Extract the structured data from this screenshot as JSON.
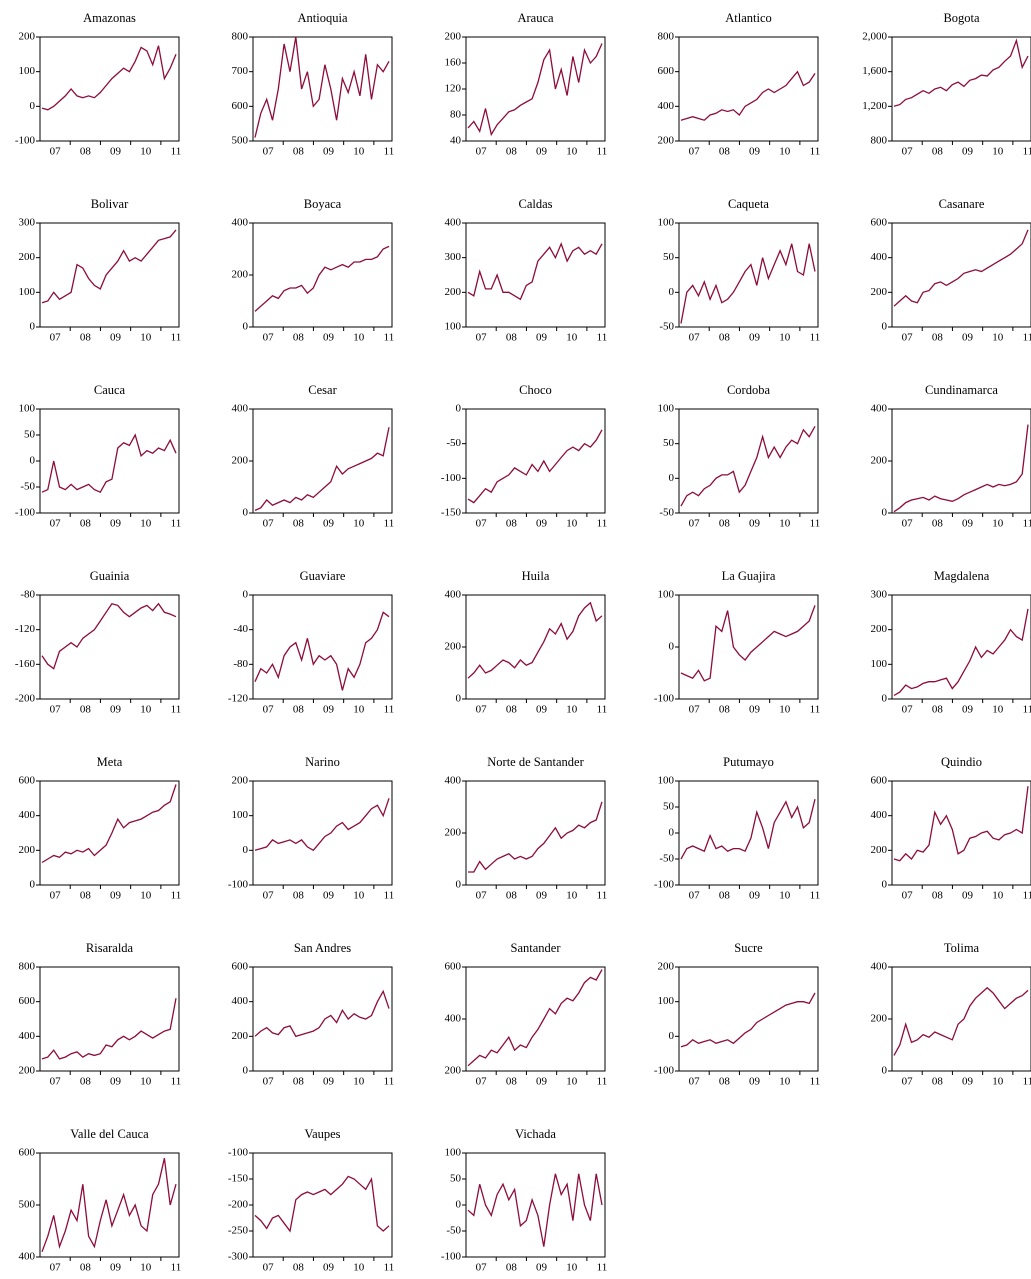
{
  "years": [
    "07",
    "08",
    "09",
    "10",
    "11"
  ],
  "chart_data": [
    {
      "type": "line",
      "title": "Amazonas",
      "color": "#8e0c3a",
      "ylim": [
        -100,
        200
      ],
      "yticks": [
        -100,
        0,
        100,
        200
      ],
      "values": [
        -5,
        -10,
        0,
        15,
        30,
        50,
        30,
        25,
        30,
        25,
        40,
        60,
        80,
        95,
        110,
        100,
        130,
        170,
        160,
        120,
        175,
        80,
        110,
        150
      ]
    },
    {
      "type": "line",
      "title": "Antioquia",
      "color": "#8e0c3a",
      "ylim": [
        500,
        800
      ],
      "yticks": [
        500,
        600,
        700,
        800
      ],
      "values": [
        510,
        580,
        620,
        560,
        650,
        780,
        700,
        800,
        650,
        700,
        600,
        620,
        720,
        650,
        560,
        680,
        640,
        700,
        630,
        750,
        620,
        720,
        700,
        730
      ]
    },
    {
      "type": "line",
      "title": "Arauca",
      "color": "#8e0c3a",
      "ylim": [
        40,
        200
      ],
      "yticks": [
        40,
        80,
        120,
        160,
        200
      ],
      "values": [
        60,
        70,
        55,
        90,
        50,
        65,
        75,
        85,
        88,
        95,
        100,
        105,
        130,
        165,
        180,
        120,
        150,
        110,
        170,
        130,
        180,
        160,
        170,
        190
      ]
    },
    {
      "type": "line",
      "title": "Atlantico",
      "color": "#8e0c3a",
      "ylim": [
        200,
        800
      ],
      "yticks": [
        200,
        400,
        600,
        800
      ],
      "values": [
        320,
        330,
        340,
        330,
        320,
        350,
        360,
        380,
        370,
        380,
        350,
        400,
        420,
        440,
        480,
        500,
        480,
        500,
        520,
        560,
        600,
        520,
        540,
        590
      ]
    },
    {
      "type": "line",
      "title": "Bogota",
      "color": "#8e0c3a",
      "ylim": [
        800,
        2000
      ],
      "yticks": [
        800,
        {
          "value": 1200,
          "label": "1,200"
        },
        {
          "value": 1600,
          "label": "1,600"
        },
        {
          "value": 2000,
          "label": "2,000"
        }
      ],
      "values": [
        1200,
        1220,
        1280,
        1300,
        1340,
        1380,
        1350,
        1400,
        1420,
        1380,
        1450,
        1480,
        1430,
        1500,
        1520,
        1560,
        1550,
        1620,
        1650,
        1720,
        1780,
        1960,
        1650,
        1780
      ]
    },
    {
      "type": "line",
      "title": "Bolivar",
      "color": "#8e0c3a",
      "ylim": [
        0,
        300
      ],
      "yticks": [
        0,
        100,
        200,
        300
      ],
      "values": [
        70,
        75,
        100,
        80,
        90,
        100,
        180,
        170,
        140,
        120,
        110,
        150,
        170,
        190,
        220,
        190,
        200,
        190,
        210,
        230,
        250,
        255,
        260,
        280
      ]
    },
    {
      "type": "line",
      "title": "Boyaca",
      "color": "#8e0c3a",
      "ylim": [
        0,
        400
      ],
      "yticks": [
        0,
        200,
        400
      ],
      "values": [
        60,
        80,
        100,
        120,
        110,
        140,
        150,
        150,
        160,
        130,
        150,
        200,
        230,
        220,
        230,
        240,
        230,
        250,
        250,
        260,
        260,
        270,
        300,
        310
      ]
    },
    {
      "type": "line",
      "title": "Caldas",
      "color": "#8e0c3a",
      "ylim": [
        100,
        400
      ],
      "yticks": [
        100,
        200,
        300,
        400
      ],
      "values": [
        200,
        190,
        260,
        210,
        210,
        250,
        200,
        200,
        190,
        180,
        220,
        230,
        290,
        310,
        330,
        300,
        340,
        290,
        320,
        330,
        310,
        320,
        310,
        340
      ]
    },
    {
      "type": "line",
      "title": "Caqueta",
      "color": "#8e0c3a",
      "ylim": [
        -50,
        100
      ],
      "yticks": [
        -50,
        0,
        50,
        100
      ],
      "values": [
        -45,
        0,
        10,
        -5,
        15,
        -10,
        10,
        -15,
        -10,
        0,
        15,
        30,
        40,
        10,
        50,
        20,
        40,
        60,
        40,
        70,
        30,
        25,
        70,
        30
      ]
    },
    {
      "type": "line",
      "title": "Casanare",
      "color": "#8e0c3a",
      "ylim": [
        0,
        600
      ],
      "yticks": [
        0,
        200,
        400,
        600
      ],
      "values": [
        120,
        150,
        180,
        150,
        140,
        200,
        210,
        250,
        260,
        240,
        260,
        280,
        310,
        320,
        330,
        320,
        340,
        360,
        380,
        400,
        420,
        450,
        480,
        560
      ]
    },
    {
      "type": "line",
      "title": "Cauca",
      "color": "#8e0c3a",
      "ylim": [
        -100,
        100
      ],
      "yticks": [
        -100,
        -50,
        0,
        50,
        100
      ],
      "values": [
        -60,
        -55,
        0,
        -50,
        -55,
        -45,
        -55,
        -50,
        -45,
        -55,
        -60,
        -40,
        -35,
        25,
        35,
        30,
        50,
        10,
        20,
        15,
        25,
        20,
        40,
        15
      ]
    },
    {
      "type": "line",
      "title": "Cesar",
      "color": "#8e0c3a",
      "ylim": [
        0,
        400
      ],
      "yticks": [
        0,
        200,
        400
      ],
      "values": [
        10,
        20,
        50,
        30,
        40,
        50,
        40,
        60,
        50,
        70,
        60,
        80,
        100,
        120,
        180,
        150,
        170,
        180,
        190,
        200,
        210,
        230,
        220,
        330
      ]
    },
    {
      "type": "line",
      "title": "Choco",
      "color": "#8e0c3a",
      "ylim": [
        -150,
        0
      ],
      "yticks": [
        -150,
        -100,
        -50,
        0
      ],
      "values": [
        -130,
        -135,
        -125,
        -115,
        -120,
        -105,
        -100,
        -95,
        -85,
        -90,
        -95,
        -80,
        -90,
        -75,
        -90,
        -80,
        -70,
        -60,
        -55,
        -60,
        -50,
        -55,
        -45,
        -30
      ]
    },
    {
      "type": "line",
      "title": "Cordoba",
      "color": "#8e0c3a",
      "ylim": [
        -50,
        100
      ],
      "yticks": [
        -50,
        0,
        50,
        100
      ],
      "values": [
        -40,
        -25,
        -20,
        -25,
        -15,
        -10,
        0,
        5,
        5,
        10,
        -20,
        -10,
        10,
        30,
        60,
        30,
        45,
        30,
        45,
        55,
        50,
        70,
        60,
        75
      ]
    },
    {
      "type": "line",
      "title": "Cundinamarca",
      "color": "#8e0c3a",
      "ylim": [
        0,
        400
      ],
      "yticks": [
        0,
        200,
        400
      ],
      "values": [
        5,
        20,
        40,
        50,
        55,
        60,
        50,
        65,
        55,
        50,
        45,
        55,
        70,
        80,
        90,
        100,
        110,
        100,
        110,
        105,
        110,
        120,
        150,
        340
      ]
    },
    {
      "type": "line",
      "title": "Guainia",
      "color": "#8e0c3a",
      "ylim": [
        -200,
        -80
      ],
      "yticks": [
        -200,
        -160,
        -120,
        -80
      ],
      "values": [
        -150,
        -160,
        -165,
        -145,
        -140,
        -135,
        -140,
        -130,
        -125,
        -120,
        -110,
        -100,
        -90,
        -92,
        -100,
        -105,
        -100,
        -95,
        -92,
        -98,
        -90,
        -100,
        -102,
        -105
      ]
    },
    {
      "type": "line",
      "title": "Guaviare",
      "color": "#8e0c3a",
      "ylim": [
        -120,
        0
      ],
      "yticks": [
        -120,
        -80,
        -40,
        0
      ],
      "values": [
        -100,
        -85,
        -90,
        -80,
        -95,
        -70,
        -60,
        -55,
        -75,
        -50,
        -80,
        -70,
        -75,
        -70,
        -80,
        -110,
        -85,
        -95,
        -80,
        -55,
        -50,
        -40,
        -20,
        -25
      ]
    },
    {
      "type": "line",
      "title": "Huila",
      "color": "#8e0c3a",
      "ylim": [
        0,
        400
      ],
      "yticks": [
        0,
        200,
        400
      ],
      "values": [
        80,
        100,
        130,
        100,
        110,
        130,
        150,
        140,
        120,
        150,
        130,
        140,
        180,
        220,
        270,
        250,
        290,
        230,
        260,
        320,
        350,
        370,
        300,
        320
      ]
    },
    {
      "type": "line",
      "title": "La Guajira",
      "color": "#8e0c3a",
      "ylim": [
        -100,
        100
      ],
      "yticks": [
        -100,
        0,
        100
      ],
      "values": [
        -50,
        -55,
        -60,
        -45,
        -65,
        -60,
        40,
        30,
        70,
        0,
        -15,
        -25,
        -10,
        0,
        10,
        20,
        30,
        25,
        20,
        25,
        30,
        40,
        50,
        80
      ]
    },
    {
      "type": "line",
      "title": "Magdalena",
      "color": "#8e0c3a",
      "ylim": [
        0,
        300
      ],
      "yticks": [
        0,
        100,
        200,
        300
      ],
      "values": [
        10,
        20,
        40,
        30,
        35,
        45,
        50,
        50,
        55,
        60,
        30,
        50,
        80,
        110,
        150,
        120,
        140,
        130,
        150,
        170,
        200,
        180,
        170,
        260
      ]
    },
    {
      "type": "line",
      "title": "Meta",
      "color": "#8e0c3a",
      "ylim": [
        0,
        600
      ],
      "yticks": [
        0,
        200,
        400,
        600
      ],
      "values": [
        130,
        150,
        170,
        160,
        190,
        180,
        200,
        190,
        210,
        170,
        200,
        230,
        300,
        380,
        330,
        360,
        370,
        380,
        400,
        420,
        430,
        460,
        480,
        580
      ]
    },
    {
      "type": "line",
      "title": "Narino",
      "color": "#8e0c3a",
      "ylim": [
        -100,
        200
      ],
      "yticks": [
        -100,
        0,
        100,
        200
      ],
      "values": [
        0,
        5,
        10,
        30,
        20,
        25,
        30,
        20,
        30,
        10,
        0,
        20,
        40,
        50,
        70,
        80,
        60,
        70,
        80,
        100,
        120,
        130,
        100,
        150
      ]
    },
    {
      "type": "line",
      "title": "Norte de Santander",
      "color": "#8e0c3a",
      "ylim": [
        0,
        400
      ],
      "yticks": [
        0,
        200,
        400
      ],
      "values": [
        50,
        50,
        90,
        60,
        80,
        100,
        110,
        120,
        100,
        110,
        100,
        110,
        140,
        160,
        190,
        220,
        180,
        200,
        210,
        230,
        220,
        240,
        250,
        320
      ]
    },
    {
      "type": "line",
      "title": "Putumayo",
      "color": "#8e0c3a",
      "ylim": [
        -100,
        100
      ],
      "yticks": [
        -100,
        -50,
        0,
        50,
        100
      ],
      "values": [
        -50,
        -30,
        -25,
        -30,
        -35,
        -5,
        -30,
        -25,
        -35,
        -30,
        -30,
        -35,
        -10,
        40,
        10,
        -30,
        20,
        40,
        60,
        30,
        50,
        10,
        20,
        65
      ]
    },
    {
      "type": "line",
      "title": "Quindio",
      "color": "#8e0c3a",
      "ylim": [
        0,
        600
      ],
      "yticks": [
        0,
        200,
        400,
        600
      ],
      "values": [
        150,
        140,
        180,
        150,
        200,
        190,
        230,
        420,
        350,
        400,
        320,
        180,
        200,
        270,
        280,
        300,
        310,
        270,
        260,
        290,
        300,
        320,
        300,
        570
      ]
    },
    {
      "type": "line",
      "title": "Risaralda",
      "color": "#8e0c3a",
      "ylim": [
        200,
        800
      ],
      "yticks": [
        200,
        400,
        600,
        800
      ],
      "values": [
        270,
        280,
        320,
        270,
        280,
        300,
        310,
        280,
        300,
        290,
        300,
        350,
        340,
        380,
        400,
        380,
        400,
        430,
        410,
        390,
        410,
        430,
        440,
        620
      ]
    },
    {
      "type": "line",
      "title": "San Andres",
      "color": "#8e0c3a",
      "ylim": [
        0,
        600
      ],
      "yticks": [
        0,
        200,
        400,
        600
      ],
      "values": [
        200,
        230,
        250,
        220,
        210,
        250,
        260,
        200,
        210,
        220,
        230,
        250,
        300,
        320,
        280,
        350,
        300,
        330,
        310,
        300,
        320,
        400,
        460,
        360
      ]
    },
    {
      "type": "line",
      "title": "Santander",
      "color": "#8e0c3a",
      "ylim": [
        200,
        600
      ],
      "yticks": [
        200,
        400,
        600
      ],
      "values": [
        220,
        240,
        260,
        250,
        280,
        270,
        300,
        330,
        280,
        300,
        290,
        330,
        360,
        400,
        440,
        420,
        460,
        480,
        470,
        500,
        540,
        560,
        550,
        590
      ]
    },
    {
      "type": "line",
      "title": "Sucre",
      "color": "#8e0c3a",
      "ylim": [
        -100,
        200
      ],
      "yticks": [
        -100,
        0,
        100,
        200
      ],
      "values": [
        -30,
        -25,
        -10,
        -20,
        -15,
        -10,
        -20,
        -15,
        -10,
        -20,
        -5,
        10,
        20,
        40,
        50,
        60,
        70,
        80,
        90,
        95,
        100,
        100,
        95,
        125
      ]
    },
    {
      "type": "line",
      "title": "Tolima",
      "color": "#8e0c3a",
      "ylim": [
        0,
        400
      ],
      "yticks": [
        0,
        200,
        400
      ],
      "values": [
        60,
        100,
        180,
        110,
        120,
        140,
        130,
        150,
        140,
        130,
        120,
        180,
        200,
        250,
        280,
        300,
        320,
        300,
        270,
        240,
        260,
        280,
        290,
        310
      ]
    },
    {
      "type": "line",
      "title": "Valle del Cauca",
      "color": "#8e0c3a",
      "ylim": [
        400,
        600
      ],
      "yticks": [
        400,
        500,
        600
      ],
      "values": [
        410,
        440,
        480,
        420,
        450,
        490,
        470,
        540,
        440,
        420,
        470,
        510,
        460,
        490,
        520,
        480,
        500,
        460,
        450,
        520,
        540,
        590,
        500,
        540
      ]
    },
    {
      "type": "line",
      "title": "Vaupes",
      "color": "#8e0c3a",
      "ylim": [
        -300,
        -100
      ],
      "yticks": [
        -300,
        -250,
        -200,
        -150,
        -100
      ],
      "values": [
        -220,
        -230,
        -245,
        -225,
        -220,
        -235,
        -250,
        -190,
        -180,
        -175,
        -180,
        -175,
        -170,
        -180,
        -170,
        -160,
        -145,
        -150,
        -160,
        -170,
        -150,
        -240,
        -250,
        -240
      ]
    },
    {
      "type": "line",
      "title": "Vichada",
      "color": "#8e0c3a",
      "ylim": [
        -100,
        100
      ],
      "yticks": [
        -100,
        -50,
        0,
        50,
        100
      ],
      "values": [
        -10,
        -20,
        40,
        0,
        -20,
        20,
        40,
        10,
        30,
        -40,
        -30,
        10,
        -20,
        -80,
        0,
        60,
        20,
        40,
        -30,
        60,
        0,
        -30,
        60,
        0
      ]
    }
  ]
}
